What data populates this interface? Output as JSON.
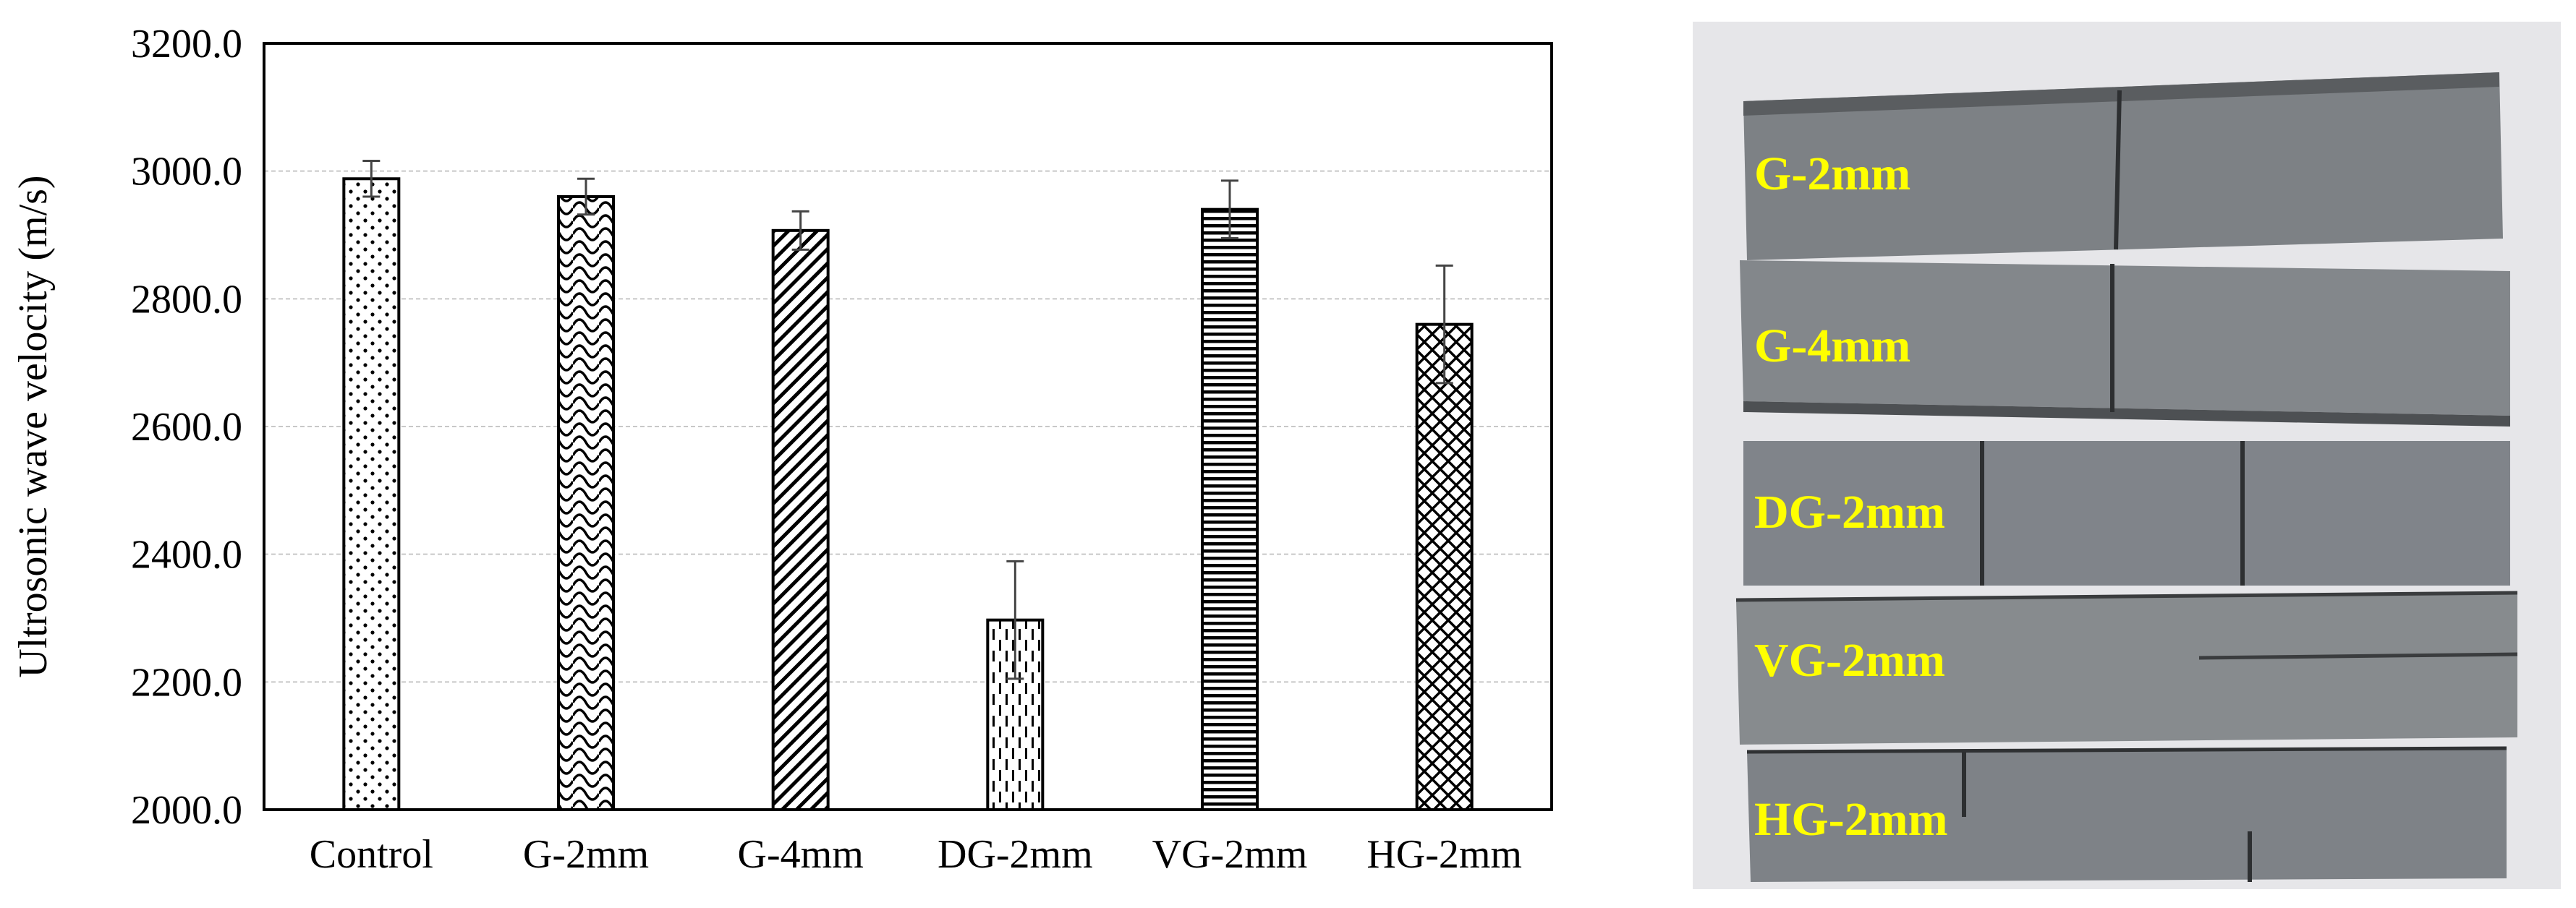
{
  "chart_data": {
    "type": "bar",
    "title": "",
    "xlabel": "",
    "ylabel": "Ultrosonic wave velocity (m/s)",
    "ylim": [
      2000,
      3200
    ],
    "yticks": [
      "2000.0",
      "2200.0",
      "2400.0",
      "2600.0",
      "2800.0",
      "3000.0",
      "3200.0"
    ],
    "grid": true,
    "categories": [
      "Control",
      "G-2mm",
      "G-4mm",
      "DG-2mm",
      "VG-2mm",
      "HG-2mm"
    ],
    "values": [
      2988,
      2960,
      2907,
      2297,
      2940,
      2760
    ],
    "errors": [
      28,
      28,
      30,
      92,
      45,
      92
    ],
    "patterns": [
      "dots",
      "scales",
      "diagonal-stripes",
      "dashed-vertical",
      "horizontal-stripes",
      "crosshatch"
    ]
  },
  "photo": {
    "description_labels": [
      "G-2mm",
      "G-4mm",
      "DG-2mm",
      "VG-2mm",
      "HG-2mm"
    ],
    "label_color": "#ffff00",
    "background_color": "#e8e8ea",
    "specimen_color": "#7c8084"
  }
}
